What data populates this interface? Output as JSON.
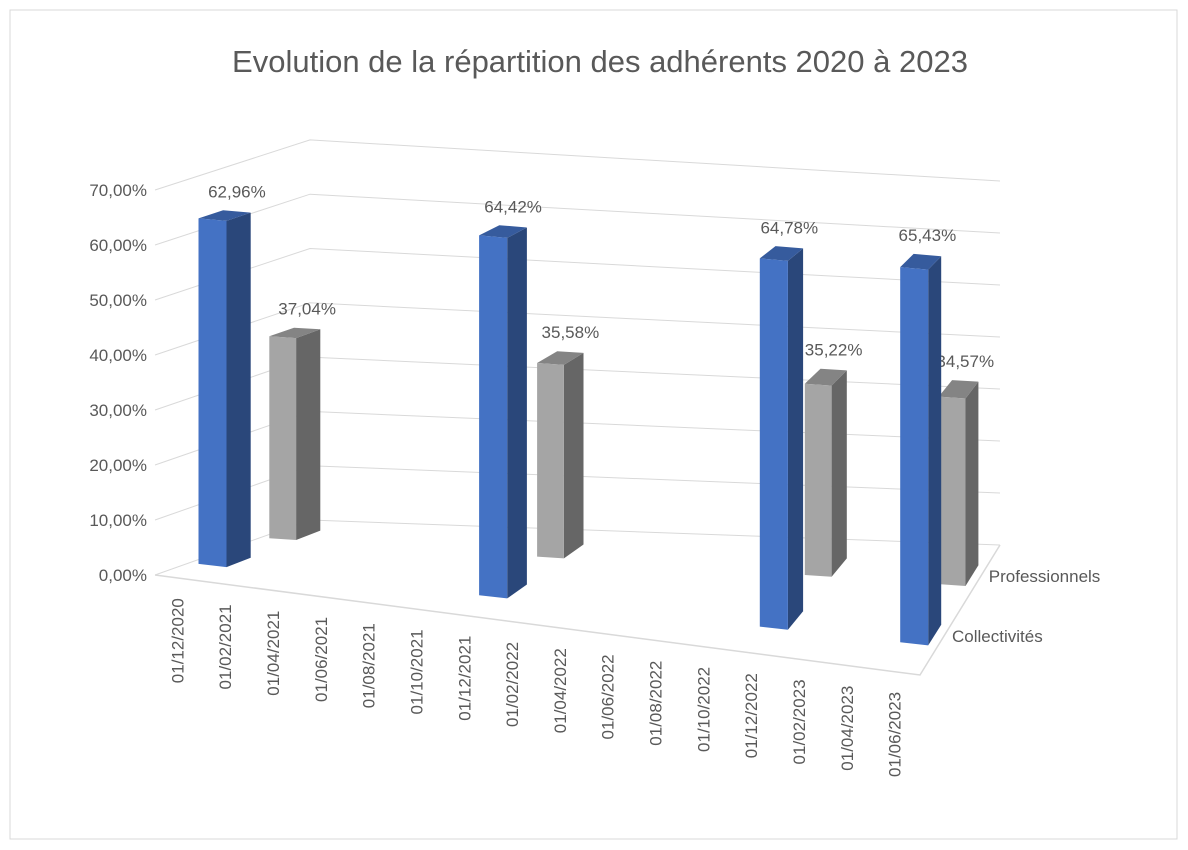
{
  "chart_data": {
    "type": "bar3d",
    "title": "Evolution de la répartition des adhérents 2020 à 2023",
    "categories": [
      "01/12/2020",
      "01/02/2021",
      "01/04/2021",
      "01/06/2021",
      "01/08/2021",
      "01/10/2021",
      "01/12/2021",
      "01/02/2022",
      "01/04/2022",
      "01/06/2022",
      "01/08/2022",
      "01/10/2022",
      "01/12/2022",
      "01/02/2023",
      "01/04/2023",
      "01/06/2023"
    ],
    "series": [
      {
        "name": "Collectivités",
        "color": "#4472c4",
        "values": [
          62.96,
          null,
          null,
          null,
          null,
          null,
          64.42,
          null,
          null,
          null,
          null,
          null,
          64.78,
          null,
          null,
          65.43
        ],
        "value_labels": [
          "62,96%",
          null,
          null,
          null,
          null,
          null,
          "64,42%",
          null,
          null,
          null,
          null,
          null,
          "64,78%",
          null,
          null,
          "65,43%"
        ]
      },
      {
        "name": "Professionnels",
        "color": "#a5a5a5",
        "values": [
          37.04,
          null,
          null,
          null,
          null,
          null,
          35.58,
          null,
          null,
          null,
          null,
          null,
          35.22,
          null,
          null,
          34.57
        ],
        "value_labels": [
          "37,04%",
          null,
          null,
          null,
          null,
          null,
          "35,58%",
          null,
          null,
          null,
          null,
          null,
          "35,22%",
          null,
          null,
          "34,57%"
        ]
      }
    ],
    "ylim": [
      0,
      70
    ],
    "yticks": [
      {
        "value": 0,
        "label": "0,00%"
      },
      {
        "value": 10,
        "label": "10,00%"
      },
      {
        "value": 20,
        "label": "20,00%"
      },
      {
        "value": 30,
        "label": "30,00%"
      },
      {
        "value": 40,
        "label": "40,00%"
      },
      {
        "value": 50,
        "label": "50,00%"
      },
      {
        "value": 60,
        "label": "60,00%"
      },
      {
        "value": 70,
        "label": "70,00%"
      }
    ],
    "grid": true
  }
}
